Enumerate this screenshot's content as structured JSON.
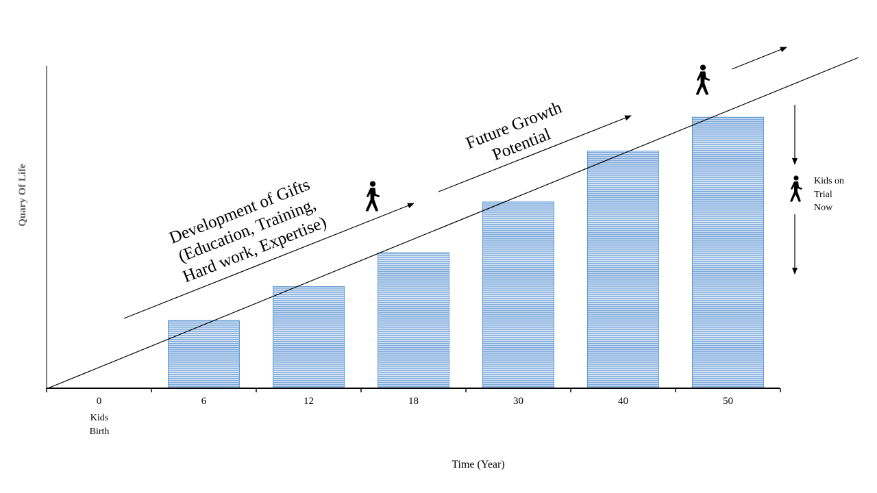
{
  "chart_data": {
    "type": "bar",
    "title": "",
    "xlabel": "Time (Year)",
    "ylabel": "Quary Of Life",
    "categories": [
      "0",
      "6",
      "12",
      "18",
      "30",
      "40",
      "50"
    ],
    "values": [
      0,
      1,
      1.5,
      2,
      2.75,
      3.5,
      4
    ],
    "ylim": [
      0,
      4.76
    ],
    "grid": false,
    "bar_color": "#9dc3e6",
    "bar_edge_color": "#5b9bd5",
    "sublabel_under_0": [
      "Kids",
      "Birth"
    ],
    "annotations": {
      "development": [
        "Development of Gifts",
        "(Education, Training,",
        "Hard work, Expertise)"
      ],
      "future": [
        "Future Growth",
        "Potential"
      ],
      "kids_trial": [
        "Kids on",
        "Trial",
        "Now"
      ]
    },
    "icons": [
      "walking-person-icon",
      "arrow-icon"
    ]
  }
}
